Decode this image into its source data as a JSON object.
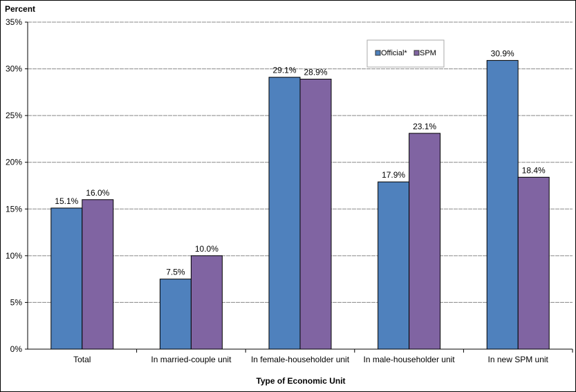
{
  "chart_data": {
    "type": "bar",
    "title": "",
    "ylabel": "Percent",
    "xlabel": "Type of Economic Unit",
    "ylim": [
      0,
      35
    ],
    "yticks": [
      0,
      5,
      10,
      15,
      20,
      25,
      30,
      35
    ],
    "ytick_labels": [
      "0%",
      "5%",
      "10%",
      "15%",
      "20%",
      "25%",
      "30%",
      "35%"
    ],
    "grid": true,
    "legend_position": "top-right",
    "categories": [
      "Total",
      "In married-couple unit",
      "In female-householder unit",
      "In male-householder unit",
      "In new SPM unit"
    ],
    "series": [
      {
        "name": "Official*",
        "color": "#4f81bd",
        "values": [
          15.1,
          7.5,
          29.1,
          17.9,
          30.9
        ],
        "labels": [
          "15.1%",
          "7.5%",
          "29.1%",
          "17.9%",
          "30.9%"
        ]
      },
      {
        "name": "SPM",
        "color": "#8064a2",
        "values": [
          16.0,
          10.0,
          28.9,
          23.1,
          18.4
        ],
        "labels": [
          "16.0%",
          "10.0%",
          "28.9%",
          "23.1%",
          "18.4%"
        ]
      }
    ]
  }
}
